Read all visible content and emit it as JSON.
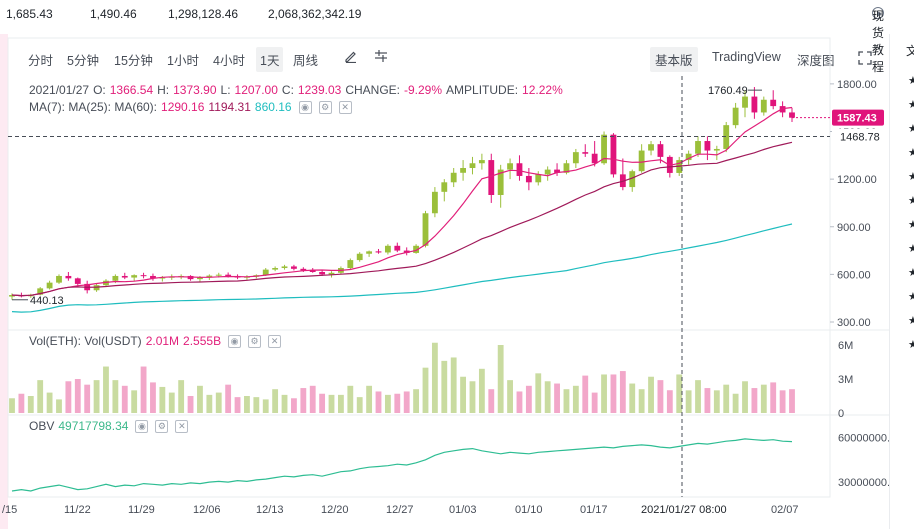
{
  "stats": {
    "v1": "1,685.43",
    "v2": "1,490.46",
    "v3": "1,298,128.46",
    "v4": "2,068,362,342.19",
    "tutorial_label": "现货教程"
  },
  "toolbar": {
    "timeframes": [
      "分时",
      "5分钟",
      "15分钟",
      "1小时",
      "4小时",
      "1天",
      "周线"
    ],
    "active_timeframe": "1天",
    "views": [
      "基本版",
      "TradingView",
      "深度图"
    ],
    "active_view": "基本版"
  },
  "legend": {
    "date": "2021/01/27",
    "o_label": "O:",
    "o": "1366.54",
    "h_label": "H:",
    "h": "1373.90",
    "l_label": "L:",
    "l": "1207.00",
    "c_label": "C:",
    "c": "1239.03",
    "change_label": "CHANGE:",
    "change": "-9.29%",
    "amp_label": "AMPLITUDE:",
    "amp": "12.22%",
    "ma_label": "MA(7): MA(25): MA(60):",
    "ma7": "1290.16",
    "ma25": "1194.31",
    "ma60": "860.16",
    "vol_label": "Vol(ETH): Vol(USDT)",
    "vol_eth": "2.01M",
    "vol_usdt": "2.555B",
    "obv_label": "OBV",
    "obv": "49717798.34"
  },
  "price_axis": [
    "1800.00",
    "1500.00",
    "1200.00",
    "900.00",
    "600.00",
    "300.00"
  ],
  "current_price": "1587.43",
  "crosshair_price": "1468.78",
  "high_label": "1760.49",
  "low_label": "440.13",
  "vol_axis": [
    "6M",
    "3M",
    "0"
  ],
  "obv_axis": [
    "60000000.",
    "30000000."
  ],
  "date_axis": [
    "/15",
    "11/22",
    "11/29",
    "12/06",
    "12/13",
    "12/20",
    "12/27",
    "01/03",
    "01/10",
    "01/17",
    "02/07"
  ],
  "crosshair_date": "2021/01/27 08:00",
  "colors": {
    "up": "#9bbf3a",
    "down": "#e0147b",
    "ma7": "#e11f7a",
    "ma25": "#a01a5a",
    "ma60": "#1fbdbf",
    "obv": "#2ebd93"
  },
  "chart_data": {
    "type": "candlestick",
    "candles": [
      [
        460,
        480,
        440,
        470
      ],
      [
        470,
        485,
        455,
        462
      ],
      [
        462,
        478,
        452,
        472
      ],
      [
        472,
        520,
        468,
        512
      ],
      [
        512,
        560,
        505,
        548
      ],
      [
        548,
        600,
        540,
        590
      ],
      [
        590,
        615,
        560,
        575
      ],
      [
        575,
        580,
        520,
        540
      ],
      [
        540,
        560,
        480,
        500
      ],
      [
        500,
        540,
        490,
        532
      ],
      [
        532,
        570,
        525,
        560
      ],
      [
        560,
        600,
        545,
        590
      ],
      [
        590,
        610,
        570,
        580
      ],
      [
        580,
        600,
        555,
        595
      ],
      [
        595,
        610,
        575,
        590
      ],
      [
        590,
        605,
        560,
        575
      ],
      [
        575,
        590,
        555,
        580
      ],
      [
        580,
        600,
        565,
        585
      ],
      [
        585,
        600,
        570,
        590
      ],
      [
        590,
        595,
        560,
        570
      ],
      [
        570,
        590,
        555,
        580
      ],
      [
        580,
        600,
        565,
        592
      ],
      [
        592,
        610,
        580,
        598
      ],
      [
        598,
        612,
        580,
        590
      ],
      [
        590,
        600,
        570,
        580
      ],
      [
        580,
        595,
        565,
        585
      ],
      [
        585,
        600,
        575,
        595
      ],
      [
        595,
        640,
        590,
        630
      ],
      [
        630,
        650,
        620,
        640
      ],
      [
        640,
        660,
        630,
        650
      ],
      [
        650,
        660,
        625,
        635
      ],
      [
        635,
        645,
        615,
        625
      ],
      [
        625,
        640,
        610,
        615
      ],
      [
        615,
        630,
        590,
        600
      ],
      [
        600,
        620,
        580,
        610
      ],
      [
        610,
        650,
        600,
        640
      ],
      [
        640,
        700,
        630,
        690
      ],
      [
        690,
        740,
        680,
        730
      ],
      [
        730,
        750,
        710,
        745
      ],
      [
        745,
        760,
        730,
        738
      ],
      [
        738,
        790,
        725,
        780
      ],
      [
        780,
        800,
        740,
        750
      ],
      [
        750,
        770,
        720,
        735
      ],
      [
        735,
        790,
        730,
        780
      ],
      [
        780,
        1000,
        770,
        985
      ],
      [
        985,
        1150,
        960,
        1120
      ],
      [
        1120,
        1200,
        1060,
        1180
      ],
      [
        1180,
        1270,
        1150,
        1240
      ],
      [
        1240,
        1320,
        1190,
        1270
      ],
      [
        1270,
        1340,
        1230,
        1300
      ],
      [
        1300,
        1360,
        1260,
        1320
      ],
      [
        1320,
        1360,
        1050,
        1100
      ],
      [
        1100,
        1290,
        1020,
        1260
      ],
      [
        1260,
        1330,
        1200,
        1300
      ],
      [
        1300,
        1350,
        1190,
        1220
      ],
      [
        1220,
        1270,
        1130,
        1180
      ],
      [
        1180,
        1250,
        1160,
        1230
      ],
      [
        1230,
        1280,
        1190,
        1260
      ],
      [
        1260,
        1300,
        1220,
        1240
      ],
      [
        1240,
        1320,
        1230,
        1300
      ],
      [
        1300,
        1390,
        1270,
        1370
      ],
      [
        1370,
        1420,
        1340,
        1360
      ],
      [
        1360,
        1440,
        1280,
        1300
      ],
      [
        1300,
        1500,
        1290,
        1480
      ],
      [
        1480,
        1490,
        1210,
        1230
      ],
      [
        1230,
        1330,
        1130,
        1150
      ],
      [
        1150,
        1260,
        1120,
        1250
      ],
      [
        1250,
        1420,
        1240,
        1380
      ],
      [
        1380,
        1440,
        1350,
        1420
      ],
      [
        1420,
        1440,
        1300,
        1340
      ],
      [
        1340,
        1350,
        1210,
        1239
      ],
      [
        1239,
        1340,
        1220,
        1320
      ],
      [
        1320,
        1380,
        1290,
        1360
      ],
      [
        1360,
        1470,
        1340,
        1440
      ],
      [
        1440,
        1470,
        1320,
        1380
      ],
      [
        1380,
        1410,
        1320,
        1390
      ],
      [
        1390,
        1560,
        1370,
        1540
      ],
      [
        1540,
        1680,
        1520,
        1650
      ],
      [
        1650,
        1760,
        1590,
        1720
      ],
      [
        1720,
        1780,
        1580,
        1620
      ],
      [
        1620,
        1720,
        1600,
        1700
      ],
      [
        1700,
        1760,
        1640,
        1660
      ],
      [
        1660,
        1690,
        1590,
        1620
      ],
      [
        1620,
        1650,
        1560,
        1587
      ]
    ],
    "volumes": [
      1.3,
      1.7,
      1.5,
      2.9,
      1.8,
      1.2,
      2.8,
      3.0,
      2.5,
      2.9,
      4.1,
      2.9,
      2.4,
      2.0,
      4.1,
      2.7,
      2.3,
      1.8,
      2.9,
      1.5,
      2.4,
      1.6,
      1.8,
      2.5,
      1.4,
      1.5,
      1.4,
      1.2,
      2.1,
      1.6,
      1.3,
      2.2,
      2.4,
      1.7,
      1.6,
      1.6,
      2.4,
      1.4,
      2.4,
      1.9,
      1.6,
      1.7,
      1.9,
      2.1,
      4.0,
      6.2,
      4.6,
      4.9,
      3.2,
      2.8,
      3.9,
      2.1,
      6.0,
      2.9,
      1.9,
      2.4,
      3.5,
      2.8,
      2.6,
      2.1,
      2.4,
      3.3,
      1.8,
      3.4,
      3.4,
      3.7,
      2.6,
      2.1,
      3.2,
      2.9,
      2.01,
      3.4,
      2.0,
      2.9,
      2.2,
      2.0,
      2.5,
      1.7,
      2.8,
      2.2,
      2.5,
      2.7,
      2.0,
      2.1
    ],
    "ylim_price": [
      300,
      1900
    ],
    "ylim_vol": [
      0,
      6
    ],
    "obv": [
      2.4,
      2.5,
      2.4,
      2.6,
      2.7,
      2.8,
      2.65,
      2.5,
      2.55,
      2.7,
      2.85,
      2.7,
      2.8,
      2.75,
      2.9,
      2.85,
      2.8,
      2.9,
      2.85,
      2.95,
      2.9,
      3.0,
      3.05,
      3.0,
      3.1,
      3.05,
      3.15,
      3.2,
      3.3,
      3.4,
      3.35,
      3.45,
      3.5,
      3.4,
      3.55,
      3.7,
      3.75,
      3.9,
      4.0,
      4.05,
      4.1,
      4.2,
      4.15,
      4.3,
      4.5,
      4.8,
      5.0,
      5.1,
      5.2,
      5.25,
      5.1,
      5.0,
      4.9,
      5.0,
      4.95,
      4.9,
      5.0,
      5.05,
      5.1,
      5.15,
      5.2,
      5.25,
      5.3,
      5.35,
      5.3,
      5.4,
      5.45,
      5.5,
      5.45,
      5.35,
      5.3,
      5.4,
      5.5,
      5.6,
      5.55,
      5.65,
      5.75,
      5.8,
      5.9,
      5.85,
      5.8,
      5.85,
      5.75,
      5.72
    ],
    "ylim_obv": [
      2.0,
      6.5
    ]
  }
}
